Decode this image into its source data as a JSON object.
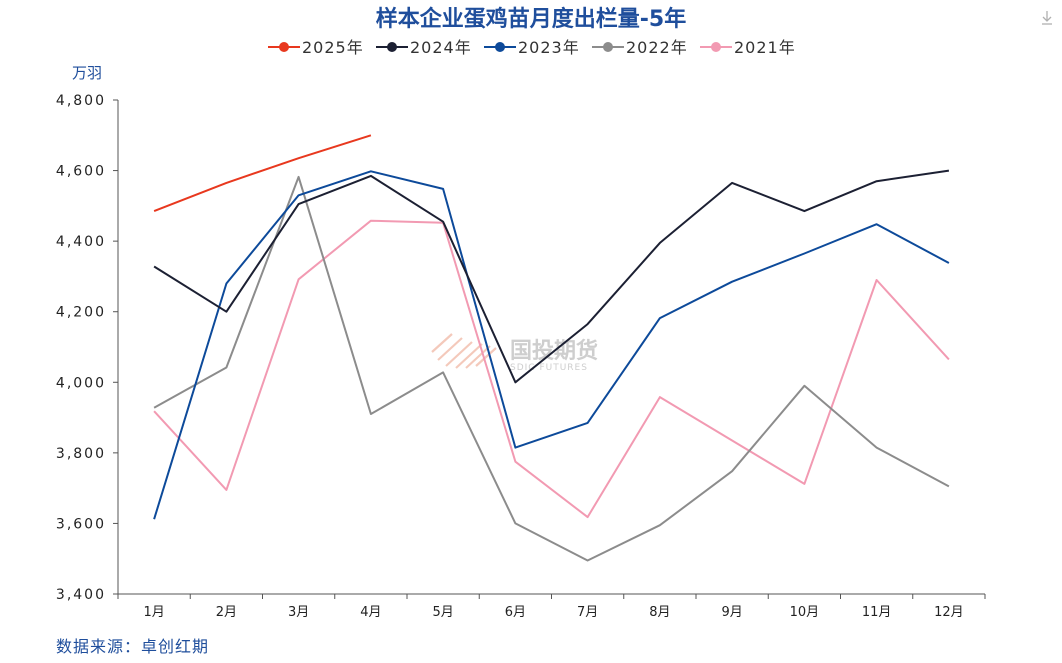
{
  "chart_data": {
    "type": "line",
    "title": "样本企业蛋鸡苗月度出栏量-5年",
    "ylabel": "万羽",
    "categories": [
      "1月",
      "2月",
      "3月",
      "4月",
      "5月",
      "6月",
      "7月",
      "8月",
      "9月",
      "10月",
      "11月",
      "12月"
    ],
    "ylim": [
      3400,
      4800
    ],
    "yticks": [
      3400,
      3600,
      3800,
      4000,
      4200,
      4400,
      4600,
      4800
    ],
    "ytick_labels": [
      "3,400",
      "3,600",
      "3,800",
      "4,000",
      "4,200",
      "4,400",
      "4,600",
      "4,800"
    ],
    "legend_position": "top-center",
    "grid": false,
    "series": [
      {
        "name": "2025年",
        "color": "#e8381e",
        "values": [
          4485,
          4565,
          4635,
          4700,
          null,
          null,
          null,
          null,
          null,
          null,
          null,
          null
        ]
      },
      {
        "name": "2024年",
        "color": "#1c2033",
        "values": [
          4328,
          4200,
          4505,
          4585,
          4455,
          4000,
          4165,
          4395,
          4565,
          4485,
          4570,
          4600
        ]
      },
      {
        "name": "2023年",
        "color": "#0d4a9a",
        "values": [
          3612,
          4280,
          4530,
          4598,
          4548,
          3815,
          3885,
          4182,
          4285,
          4365,
          4448,
          4338
        ]
      },
      {
        "name": "2022年",
        "color": "#8c8c8c",
        "values": [
          3928,
          4042,
          4582,
          3910,
          4028,
          3600,
          3495,
          3595,
          3748,
          3990,
          3815,
          3705
        ]
      },
      {
        "name": "2021年",
        "color": "#f29ab2",
        "values": [
          3918,
          3695,
          4292,
          4458,
          4452,
          3775,
          3618,
          3958,
          3835,
          3712,
          4290,
          4065
        ]
      }
    ]
  },
  "footer": {
    "source": "数据来源：卓创红期"
  },
  "watermark": {
    "name": "国投期货",
    "sub": "SDIC FUTURES"
  },
  "icons": {
    "download": "download-icon"
  }
}
